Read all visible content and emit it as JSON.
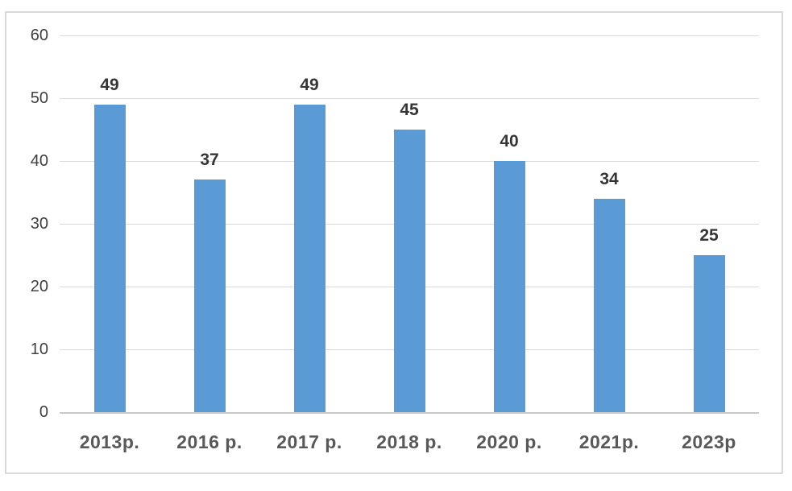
{
  "chart_data": {
    "type": "bar",
    "categories": [
      "2013p.",
      "2016 p.",
      "2017 p.",
      "2018 p.",
      "2020 p.",
      "2021p.",
      "2023p"
    ],
    "values": [
      49,
      37,
      49,
      45,
      40,
      34,
      25
    ],
    "title": "",
    "xlabel": "",
    "ylabel": "",
    "ylim": [
      0,
      60
    ],
    "yticks": [
      0,
      10,
      20,
      30,
      40,
      50,
      60
    ],
    "grid": true,
    "legend": false,
    "data_labels": true,
    "colors": {
      "bar": "#5b9bd5",
      "gridline": "#d9d9d9",
      "axis_line": "#c9c9c9",
      "panel_border": "#d9d9d9",
      "data_label": "#363636",
      "y_tick_label": "#404040",
      "x_category_label": "#595959",
      "background": "#ffffff"
    }
  }
}
